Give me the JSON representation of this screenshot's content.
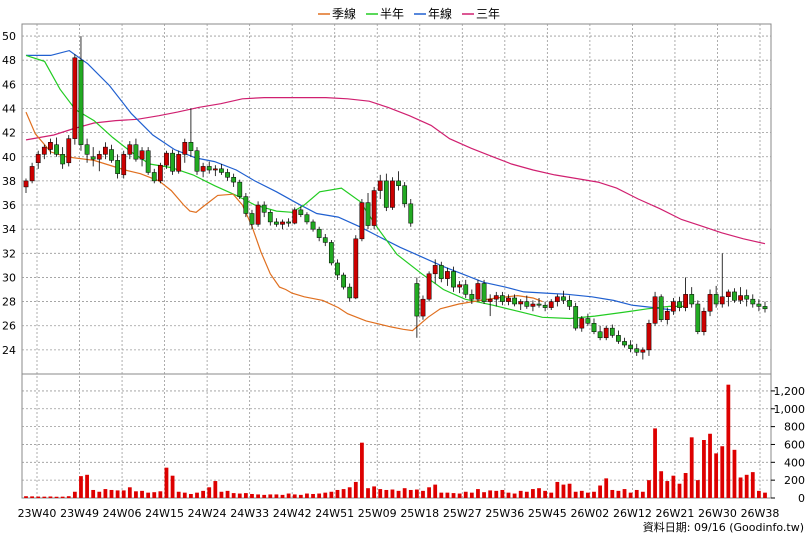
{
  "chart_data": {
    "type": "candlestick",
    "legend": [
      {
        "name": "季線",
        "color": "#e07020"
      },
      {
        "name": "半年",
        "color": "#22cc22"
      },
      {
        "name": "年線",
        "color": "#2060d0"
      },
      {
        "name": "三年",
        "color": "#d02070"
      }
    ],
    "price_axis": {
      "min": 22,
      "max": 51,
      "ticks": [
        24,
        26,
        28,
        30,
        32,
        34,
        36,
        38,
        40,
        42,
        44,
        46,
        48,
        50
      ]
    },
    "volume_axis": {
      "min": 0,
      "max": 1300,
      "ticks": [
        0,
        200,
        400,
        600,
        800,
        1000,
        1200
      ],
      "tick_labels": [
        "0",
        "200",
        "400",
        "600",
        "800",
        "1,000",
        "1,200"
      ]
    },
    "x_labels": [
      "23W40",
      "23W49",
      "24W06",
      "24W15",
      "24W24",
      "24W33",
      "24W42",
      "24W51",
      "25W09",
      "25W18",
      "25W27",
      "25W36",
      "25W45",
      "26W02",
      "26W12",
      "26W21",
      "26W30",
      "26W38"
    ],
    "up_color": "#cc0000",
    "down_color": "#22aa22",
    "volume_color": "#dd0000",
    "candles": [
      [
        37.5,
        38.2,
        37.0,
        38.0
      ],
      [
        38.0,
        39.5,
        37.8,
        39.2
      ],
      [
        39.5,
        40.5,
        39.0,
        40.2
      ],
      [
        40.2,
        41.0,
        39.8,
        40.8
      ],
      [
        40.6,
        41.5,
        40.2,
        41.2
      ],
      [
        41.0,
        41.6,
        40.0,
        40.2
      ],
      [
        40.2,
        40.8,
        39.0,
        39.4
      ],
      [
        39.5,
        41.8,
        39.2,
        41.5
      ],
      [
        41.5,
        48.5,
        41.0,
        48.2
      ],
      [
        48.0,
        50.0,
        40.5,
        41.0
      ],
      [
        41.0,
        41.5,
        39.5,
        40.2
      ],
      [
        40.0,
        40.8,
        39.2,
        39.8
      ],
      [
        39.8,
        40.5,
        38.8,
        40.2
      ],
      [
        40.2,
        41.2,
        39.8,
        40.8
      ],
      [
        40.6,
        41.0,
        39.5,
        39.7
      ],
      [
        39.7,
        40.2,
        38.2,
        38.6
      ],
      [
        38.5,
        40.5,
        38.2,
        40.2
      ],
      [
        40.2,
        41.3,
        39.8,
        41.0
      ],
      [
        41.0,
        41.5,
        39.6,
        39.8
      ],
      [
        39.8,
        40.8,
        39.2,
        40.5
      ],
      [
        40.5,
        40.8,
        38.5,
        38.7
      ],
      [
        38.7,
        39.0,
        37.8,
        38.0
      ],
      [
        38.0,
        39.5,
        37.8,
        39.3
      ],
      [
        39.3,
        40.5,
        39.0,
        40.3
      ],
      [
        40.3,
        40.6,
        38.5,
        38.8
      ],
      [
        38.8,
        40.5,
        38.6,
        40.2
      ],
      [
        40.2,
        41.5,
        39.5,
        41.2
      ],
      [
        41.2,
        44.0,
        40.0,
        40.5
      ],
      [
        40.5,
        40.8,
        38.5,
        38.8
      ],
      [
        38.8,
        39.5,
        38.3,
        39.2
      ],
      [
        39.2,
        39.6,
        38.6,
        38.9
      ],
      [
        38.9,
        39.3,
        38.4,
        39.0
      ],
      [
        39.0,
        39.4,
        38.5,
        38.7
      ],
      [
        38.7,
        39.0,
        38.0,
        38.3
      ],
      [
        38.3,
        38.6,
        37.5,
        37.9
      ],
      [
        37.9,
        38.1,
        36.5,
        36.7
      ],
      [
        36.7,
        37.0,
        35.0,
        35.3
      ],
      [
        35.3,
        35.6,
        34.0,
        34.4
      ],
      [
        34.4,
        36.3,
        34.2,
        36.0
      ],
      [
        36.0,
        36.3,
        35.0,
        35.4
      ],
      [
        35.4,
        35.6,
        34.3,
        34.6
      ],
      [
        34.6,
        34.9,
        34.2,
        34.4
      ],
      [
        34.4,
        34.8,
        34.0,
        34.6
      ],
      [
        34.6,
        34.9,
        34.2,
        34.5
      ],
      [
        34.5,
        35.8,
        34.4,
        35.6
      ],
      [
        35.6,
        35.9,
        35.0,
        35.2
      ],
      [
        35.2,
        35.4,
        34.4,
        34.6
      ],
      [
        34.6,
        34.8,
        33.8,
        34.0
      ],
      [
        34.0,
        34.2,
        33.0,
        33.3
      ],
      [
        33.3,
        33.6,
        32.6,
        32.9
      ],
      [
        32.9,
        33.1,
        31.0,
        31.2
      ],
      [
        31.2,
        31.5,
        29.8,
        30.2
      ],
      [
        30.2,
        30.4,
        29.0,
        29.2
      ],
      [
        29.2,
        29.5,
        28.0,
        28.3
      ],
      [
        28.3,
        33.5,
        28.2,
        33.2
      ],
      [
        33.2,
        36.5,
        33.0,
        36.2
      ],
      [
        36.2,
        37.0,
        34.0,
        34.3
      ],
      [
        34.3,
        37.5,
        34.0,
        37.2
      ],
      [
        37.2,
        38.5,
        36.5,
        38.0
      ],
      [
        38.0,
        38.6,
        35.5,
        35.8
      ],
      [
        35.8,
        38.3,
        35.6,
        38.0
      ],
      [
        38.0,
        38.8,
        37.2,
        37.6
      ],
      [
        37.6,
        37.9,
        35.8,
        36.1
      ],
      [
        36.1,
        36.5,
        34.2,
        34.5
      ],
      [
        29.5,
        30.0,
        25.0,
        26.8
      ],
      [
        26.8,
        28.5,
        26.5,
        28.2
      ],
      [
        28.2,
        30.5,
        28.0,
        30.3
      ],
      [
        30.3,
        31.5,
        29.5,
        31.0
      ],
      [
        31.0,
        31.3,
        29.6,
        29.9
      ],
      [
        29.9,
        30.8,
        29.3,
        30.5
      ],
      [
        30.5,
        30.9,
        28.8,
        29.2
      ],
      [
        29.2,
        29.7,
        28.7,
        29.4
      ],
      [
        29.4,
        29.8,
        28.3,
        28.6
      ],
      [
        28.6,
        29.0,
        27.8,
        28.2
      ],
      [
        28.2,
        29.8,
        28.0,
        29.5
      ],
      [
        29.5,
        29.8,
        27.8,
        28.0
      ],
      [
        28.0,
        28.6,
        26.8,
        28.2
      ],
      [
        28.2,
        28.8,
        27.6,
        28.5
      ],
      [
        28.5,
        28.8,
        27.7,
        28.0
      ],
      [
        28.0,
        28.6,
        27.7,
        28.3
      ],
      [
        28.3,
        28.6,
        27.6,
        27.8
      ],
      [
        27.8,
        28.2,
        27.3,
        28.0
      ],
      [
        28.0,
        28.5,
        27.4,
        27.6
      ],
      [
        27.6,
        28.1,
        27.2,
        27.8
      ],
      [
        27.8,
        28.3,
        27.5,
        27.7
      ],
      [
        27.7,
        28.0,
        27.2,
        27.5
      ],
      [
        27.5,
        28.2,
        27.3,
        28.0
      ],
      [
        28.0,
        28.6,
        27.6,
        28.4
      ],
      [
        28.4,
        28.9,
        27.8,
        28.1
      ],
      [
        28.1,
        28.5,
        27.3,
        27.6
      ],
      [
        27.6,
        27.9,
        25.6,
        25.8
      ],
      [
        25.8,
        26.8,
        25.5,
        26.6
      ],
      [
        26.6,
        27.0,
        26.0,
        26.2
      ],
      [
        26.2,
        26.6,
        25.3,
        25.5
      ],
      [
        25.5,
        26.0,
        24.8,
        25.0
      ],
      [
        25.0,
        26.0,
        24.8,
        25.8
      ],
      [
        25.8,
        26.1,
        25.0,
        25.2
      ],
      [
        25.2,
        25.6,
        24.5,
        24.7
      ],
      [
        24.7,
        25.0,
        24.2,
        24.4
      ],
      [
        24.4,
        24.8,
        23.8,
        24.1
      ],
      [
        24.1,
        24.5,
        23.5,
        23.8
      ],
      [
        23.8,
        24.2,
        23.2,
        24.0
      ],
      [
        24.0,
        26.5,
        23.5,
        26.2
      ],
      [
        26.2,
        28.8,
        26.0,
        28.4
      ],
      [
        28.4,
        28.6,
        26.3,
        26.5
      ],
      [
        26.5,
        27.5,
        26.1,
        27.2
      ],
      [
        27.2,
        28.3,
        26.9,
        28.0
      ],
      [
        28.0,
        28.4,
        27.2,
        27.5
      ],
      [
        27.5,
        30.0,
        27.2,
        28.6
      ],
      [
        28.6,
        29.2,
        27.5,
        27.8
      ],
      [
        27.8,
        28.1,
        25.3,
        25.5
      ],
      [
        25.5,
        27.5,
        25.2,
        27.2
      ],
      [
        27.2,
        29.0,
        26.8,
        28.6
      ],
      [
        28.6,
        29.3,
        27.5,
        27.8
      ],
      [
        27.8,
        32.0,
        27.5,
        28.4
      ],
      [
        28.4,
        29.0,
        27.6,
        28.8
      ],
      [
        28.8,
        29.1,
        27.9,
        28.1
      ],
      [
        28.1,
        29.2,
        27.8,
        28.5
      ],
      [
        28.5,
        29.0,
        27.6,
        28.2
      ],
      [
        28.2,
        28.6,
        27.5,
        27.8
      ],
      [
        27.8,
        28.2,
        27.2,
        27.6
      ],
      [
        27.6,
        28.0,
        27.1,
        27.4
      ]
    ],
    "volumes": [
      20,
      18,
      16,
      15,
      17,
      14,
      15,
      20,
      70,
      245,
      260,
      90,
      70,
      100,
      90,
      85,
      85,
      120,
      75,
      80,
      60,
      65,
      75,
      340,
      250,
      70,
      60,
      45,
      60,
      80,
      120,
      190,
      70,
      80,
      55,
      50,
      55,
      45,
      40,
      35,
      40,
      40,
      35,
      50,
      40,
      35,
      50,
      45,
      50,
      60,
      70,
      90,
      100,
      120,
      180,
      620,
      110,
      130,
      100,
      90,
      95,
      80,
      110,
      90,
      95,
      80,
      120,
      150,
      60,
      60,
      55,
      50,
      70,
      60,
      100,
      65,
      85,
      80,
      90,
      60,
      50,
      80,
      70,
      100,
      110,
      80,
      60,
      180,
      150,
      160,
      70,
      80,
      60,
      70,
      140,
      220,
      90,
      80,
      100,
      60,
      90,
      70,
      200,
      780,
      300,
      190,
      250,
      160,
      280,
      680,
      200,
      650,
      720,
      500,
      580,
      1270,
      540,
      230,
      260,
      290,
      80,
      60,
      110,
      90,
      70
    ],
    "ma_quarter": [
      [
        0,
        43.7
      ],
      [
        3,
        41.9
      ],
      [
        8,
        40.4
      ],
      [
        13,
        40.0
      ],
      [
        22,
        39.7
      ],
      [
        32,
        38.9
      ],
      [
        37,
        38.6
      ],
      [
        43,
        38.0
      ],
      [
        47,
        37.2
      ],
      [
        51,
        36.0
      ],
      [
        53,
        35.5
      ],
      [
        55,
        35.4
      ],
      [
        57,
        35.8
      ],
      [
        62,
        36.8
      ],
      [
        67,
        36.9
      ],
      [
        70,
        36.0
      ],
      [
        73,
        34.3
      ],
      [
        76,
        32.1
      ],
      [
        79,
        30.3
      ],
      [
        82,
        29.2
      ],
      [
        84,
        29.0
      ],
      [
        86,
        28.7
      ],
      [
        90,
        28.4
      ],
      [
        96,
        28.1
      ],
      [
        101,
        27.5
      ],
      [
        104,
        27.0
      ],
      [
        110,
        26.4
      ],
      [
        118,
        25.9
      ],
      [
        122,
        25.7
      ],
      [
        125,
        25.6
      ],
      [
        130,
        26.7
      ],
      [
        134,
        27.4
      ],
      [
        140,
        27.8
      ],
      [
        147,
        28.1
      ],
      [
        152,
        28.3
      ],
      [
        159,
        28.5
      ],
      [
        164,
        28.3
      ],
      [
        167,
        28.0
      ]
    ],
    "ma_half": [
      [
        0,
        48.4
      ],
      [
        6,
        47.9
      ],
      [
        11,
        45.6
      ],
      [
        16,
        43.9
      ],
      [
        22,
        43.0
      ],
      [
        28,
        41.6
      ],
      [
        34,
        40.4
      ],
      [
        40,
        39.4
      ],
      [
        47,
        39.1
      ],
      [
        54,
        38.5
      ],
      [
        61,
        37.6
      ],
      [
        68,
        36.8
      ],
      [
        74,
        36.0
      ],
      [
        81,
        35.5
      ],
      [
        86,
        35.4
      ],
      [
        90,
        36.0
      ],
      [
        95,
        37.1
      ],
      [
        102,
        37.4
      ],
      [
        108,
        36.3
      ],
      [
        114,
        34.0
      ],
      [
        120,
        31.9
      ],
      [
        128,
        30.3
      ],
      [
        135,
        29.0
      ],
      [
        142,
        28.2
      ],
      [
        151,
        27.7
      ],
      [
        159,
        27.2
      ],
      [
        167,
        26.7
      ],
      [
        176,
        26.6
      ],
      [
        184,
        26.8
      ],
      [
        193,
        27.1
      ],
      [
        201,
        27.4
      ],
      [
        208,
        27.6
      ],
      [
        213,
        27.6
      ]
    ],
    "ma_year": [
      [
        0,
        48.4
      ],
      [
        8,
        48.4
      ],
      [
        14,
        48.8
      ],
      [
        20,
        47.7
      ],
      [
        27,
        45.9
      ],
      [
        34,
        43.6
      ],
      [
        41,
        41.8
      ],
      [
        48,
        40.6
      ],
      [
        55,
        39.9
      ],
      [
        61,
        39.6
      ],
      [
        68,
        38.9
      ],
      [
        74,
        38.0
      ],
      [
        81,
        37.1
      ],
      [
        88,
        36.1
      ],
      [
        94,
        35.3
      ],
      [
        101,
        35.0
      ],
      [
        108,
        34.2
      ],
      [
        114,
        33.4
      ],
      [
        121,
        32.5
      ],
      [
        128,
        31.7
      ],
      [
        135,
        30.9
      ],
      [
        141,
        30.3
      ],
      [
        148,
        29.6
      ],
      [
        155,
        29.2
      ],
      [
        161,
        28.8
      ],
      [
        168,
        28.7
      ],
      [
        175,
        28.6
      ],
      [
        183,
        28.4
      ],
      [
        190,
        28.1
      ],
      [
        196,
        27.7
      ],
      [
        203,
        27.5
      ],
      [
        209,
        27.3
      ]
    ],
    "ma_three": [
      [
        0,
        41.4
      ],
      [
        9,
        41.8
      ],
      [
        15,
        42.3
      ],
      [
        22,
        42.8
      ],
      [
        29,
        43.0
      ],
      [
        36,
        43.1
      ],
      [
        43,
        43.4
      ],
      [
        49,
        43.7
      ],
      [
        56,
        44.1
      ],
      [
        63,
        44.4
      ],
      [
        70,
        44.8
      ],
      [
        77,
        44.9
      ],
      [
        84,
        44.9
      ],
      [
        91,
        44.9
      ],
      [
        97,
        44.9
      ],
      [
        104,
        44.8
      ],
      [
        111,
        44.6
      ],
      [
        117,
        44.1
      ],
      [
        124,
        43.4
      ],
      [
        131,
        42.6
      ],
      [
        137,
        41.5
      ],
      [
        144,
        40.7
      ],
      [
        151,
        40.0
      ],
      [
        157,
        39.4
      ],
      [
        164,
        38.9
      ],
      [
        171,
        38.5
      ],
      [
        178,
        38.2
      ],
      [
        185,
        37.9
      ],
      [
        191,
        37.4
      ],
      [
        198,
        36.5
      ],
      [
        205,
        35.7
      ],
      [
        212,
        34.8
      ],
      [
        218,
        34.3
      ],
      [
        225,
        33.7
      ],
      [
        232,
        33.2
      ],
      [
        239,
        32.8
      ]
    ],
    "footer": "資料日期: 09/16  (Goodinfo.tw)"
  }
}
